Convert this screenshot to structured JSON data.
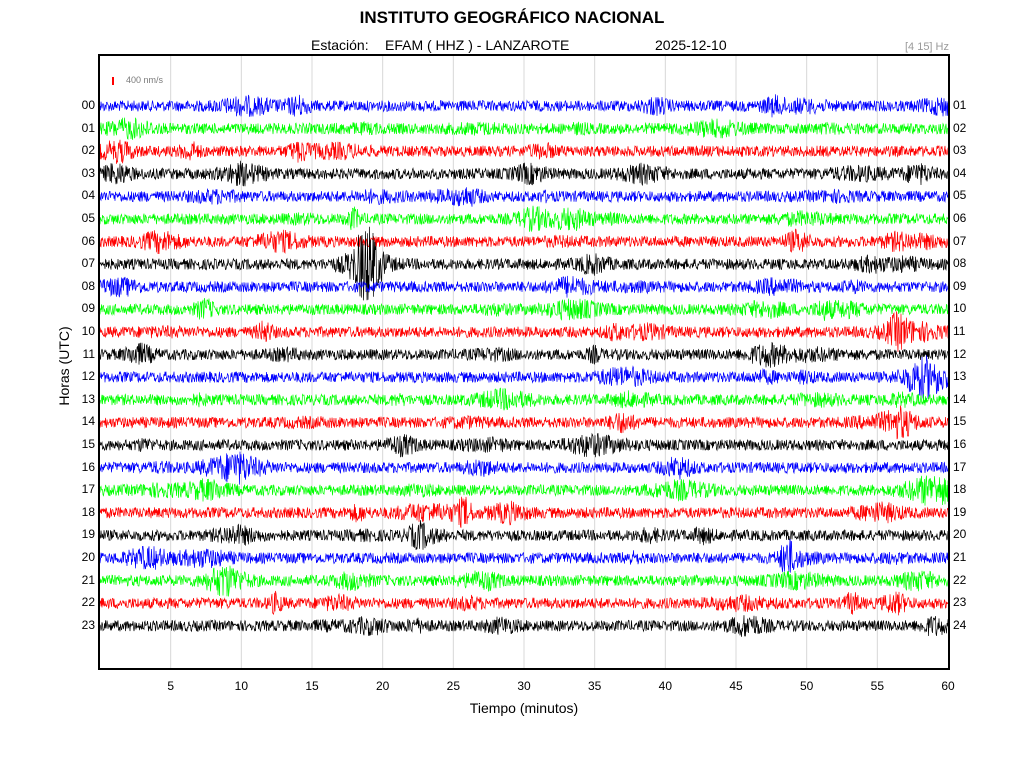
{
  "header": {
    "title": "INSTITUTO GEOGRÁFICO NACIONAL",
    "station_label": "Estación:",
    "station": "EFAM ( HHZ ) - LANZAROTE",
    "date": "2025-12-10",
    "filter": "[4 15] Hz"
  },
  "scale": {
    "label": "400 nm/s",
    "color": "#ff0000"
  },
  "chart_data": {
    "type": "line",
    "title": "INSTITUTO GEOGRÁFICO NACIONAL",
    "xlabel": "Tiempo (minutos)",
    "ylabel": "Horas (UTC)",
    "xlim": [
      0,
      60
    ],
    "x_ticks": [
      5,
      10,
      15,
      20,
      25,
      30,
      35,
      40,
      45,
      50,
      55,
      60
    ],
    "left_labels": [
      "00",
      "01",
      "02",
      "03",
      "04",
      "05",
      "06",
      "07",
      "08",
      "09",
      "10",
      "11",
      "12",
      "13",
      "14",
      "15",
      "16",
      "17",
      "18",
      "19",
      "20",
      "21",
      "22",
      "23"
    ],
    "right_labels": [
      "01",
      "02",
      "03",
      "04",
      "05",
      "06",
      "07",
      "08",
      "09",
      "10",
      "11",
      "12",
      "13",
      "14",
      "15",
      "16",
      "17",
      "18",
      "19",
      "20",
      "21",
      "22",
      "23",
      "24"
    ],
    "trace_colors": [
      "#0000ff",
      "#00ff00",
      "#ff0000",
      "#000000"
    ],
    "grid": true
  }
}
